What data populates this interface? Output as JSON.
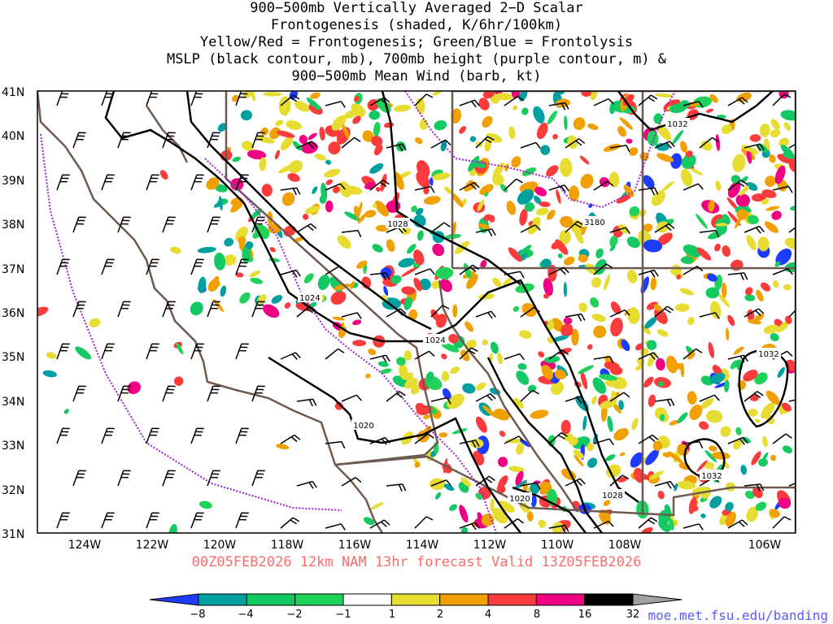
{
  "title_lines": [
    "900−500mb Vertically Averaged 2−D Scalar",
    "Frontogenesis (shaded, K/6hr/100km)",
    "Yellow/Red = Frontogenesis;  Green/Blue = Frontolysis",
    "MSLP (black contour, mb), 700mb height (purple contour, m) &",
    "900−500mb Mean Wind (barb, kt)"
  ],
  "valid_text": "00Z05FEB2026 12km NAM 13hr forecast Valid 13Z05FEB2026",
  "credit": "moe.met.fsu.edu/banding",
  "map": {
    "lon_labels": [
      "124W",
      "122W",
      "120W",
      "118W",
      "116W",
      "114W",
      "112W",
      "110W",
      "108W",
      "106W"
    ],
    "lat_labels": [
      "41N",
      "40N",
      "39N",
      "38N",
      "37N",
      "36N",
      "35N",
      "34N",
      "33N",
      "32N",
      "31N"
    ],
    "contour_labels": {
      "mslp": [
        "1032",
        "1028",
        "1024",
        "1024",
        "1020",
        "1020",
        "1028",
        "1032",
        "1032"
      ],
      "height": [
        "3180"
      ]
    }
  },
  "colorbar": {
    "labels": [
      "−8",
      "−4",
      "−2",
      "−1",
      "1",
      "2",
      "4",
      "8",
      "16",
      "32"
    ],
    "colors": [
      "#1e3cff",
      "#00a0a0",
      "#14c864",
      "#1ed25a",
      "#ffffff",
      "#e6dc32",
      "#f0a000",
      "#fa3c3c",
      "#f00082",
      "#000000",
      "#a0a0a0"
    ]
  }
}
